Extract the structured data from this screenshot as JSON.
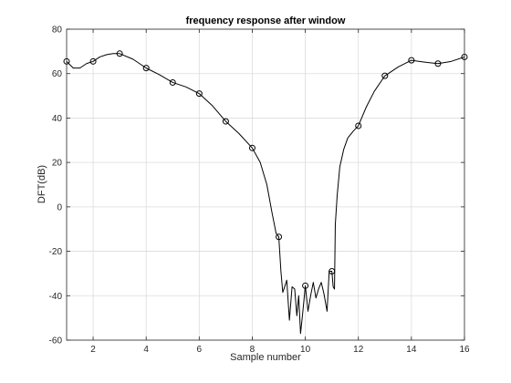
{
  "chart_data": {
    "type": "line",
    "title": "frequency response after window",
    "xlabel": "Sample number",
    "ylabel": "DFT(dB)",
    "xlim": [
      1,
      16
    ],
    "ylim": [
      -60,
      80
    ],
    "x_ticks": [
      2,
      4,
      6,
      8,
      10,
      12,
      14,
      16
    ],
    "y_ticks": [
      -60,
      -40,
      -20,
      0,
      20,
      40,
      60,
      80
    ],
    "grid": true,
    "line_color": "#000000",
    "marker": "circle",
    "series": [
      {
        "markers": {
          "x": [
            1,
            2,
            3,
            4,
            5,
            6,
            7,
            8,
            9,
            10,
            11,
            12,
            13,
            14,
            15,
            16
          ],
          "y": [
            65.5,
            65.5,
            69,
            62.5,
            56,
            51,
            38.5,
            26.5,
            -13.5,
            -35.5,
            -29,
            36.5,
            59,
            66,
            64.5,
            67.5
          ]
        },
        "curve": {
          "x": [
            1,
            1.25,
            1.5,
            1.75,
            2,
            2.25,
            2.5,
            2.75,
            3,
            3.5,
            4,
            4.5,
            5,
            5.5,
            6,
            6.5,
            7,
            7.5,
            8,
            8.3,
            8.55,
            8.75,
            8.9,
            9,
            9.08,
            9.15,
            9.22,
            9.3,
            9.4,
            9.5,
            9.6,
            9.68,
            9.75,
            9.82,
            9.9,
            10,
            10.1,
            10.2,
            10.3,
            10.4,
            10.5,
            10.6,
            10.7,
            10.82,
            10.9,
            11,
            11.05,
            11.1,
            11.13,
            11.2,
            11.3,
            11.45,
            11.6,
            11.8,
            12,
            12.3,
            12.6,
            13,
            13.5,
            14,
            14.3,
            14.6,
            15,
            15.5,
            16
          ],
          "y": [
            65.5,
            62.5,
            62.5,
            64.5,
            65.5,
            67.5,
            68.5,
            69,
            69,
            66.5,
            62.5,
            59.5,
            56,
            54,
            51,
            45.5,
            38.5,
            33,
            26.5,
            20,
            10,
            -3,
            -12,
            -13.5,
            -29,
            -38.5,
            -36,
            -33,
            -51,
            -36,
            -37,
            -49,
            -40,
            -57,
            -48,
            -35.5,
            -47,
            -40,
            -34,
            -41,
            -37,
            -34,
            -39,
            -47,
            -29,
            -29,
            -36,
            -37,
            -8,
            5,
            18,
            26,
            31,
            34,
            36.5,
            45,
            52,
            59,
            63,
            66,
            65.5,
            65,
            64.5,
            65.5,
            67.5
          ]
        }
      }
    ]
  }
}
